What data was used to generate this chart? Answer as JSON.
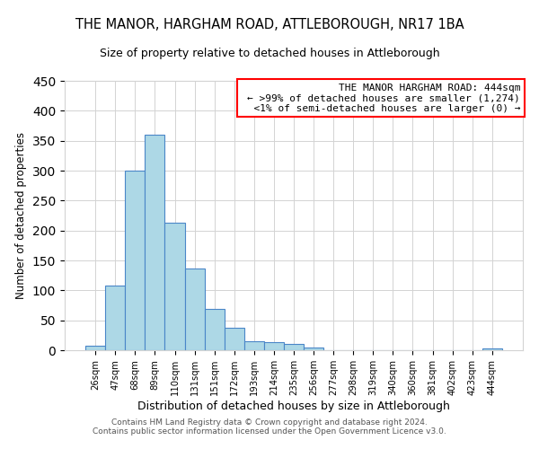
{
  "title": "THE MANOR, HARGHAM ROAD, ATTLEBOROUGH, NR17 1BA",
  "subtitle": "Size of property relative to detached houses in Attleborough",
  "xlabel": "Distribution of detached houses by size in Attleborough",
  "ylabel": "Number of detached properties",
  "bar_labels": [
    "26sqm",
    "47sqm",
    "68sqm",
    "89sqm",
    "110sqm",
    "131sqm",
    "151sqm",
    "172sqm",
    "193sqm",
    "214sqm",
    "235sqm",
    "256sqm",
    "277sqm",
    "298sqm",
    "319sqm",
    "340sqm",
    "360sqm",
    "381sqm",
    "402sqm",
    "423sqm",
    "444sqm"
  ],
  "bar_values": [
    8,
    108,
    300,
    360,
    213,
    136,
    69,
    38,
    15,
    13,
    10,
    5,
    0,
    0,
    0,
    0,
    0,
    0,
    0,
    0,
    3
  ],
  "bar_color": "#add8e6",
  "bar_edge_color": "#4a86c8",
  "ylim": [
    0,
    450
  ],
  "yticks": [
    0,
    50,
    100,
    150,
    200,
    250,
    300,
    350,
    400,
    450
  ],
  "annotation_title": "THE MANOR HARGHAM ROAD: 444sqm",
  "annotation_line1": "← >99% of detached houses are smaller (1,274)",
  "annotation_line2": "  <1% of semi-detached houses are larger (0) →",
  "annotation_box_color": "#ffffff",
  "annotation_box_edge": "#ff0000",
  "footer1": "Contains HM Land Registry data © Crown copyright and database right 2024.",
  "footer2": "Contains public sector information licensed under the Open Government Licence v3.0."
}
